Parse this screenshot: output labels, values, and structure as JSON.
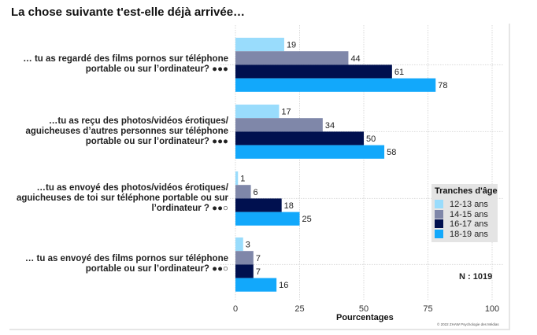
{
  "chart_data": {
    "type": "bar",
    "orientation": "horizontal",
    "title": "La chose suivante t'est-elle déjà arrivée…",
    "xlabel": "Pourcentages",
    "ylabel": "",
    "xlim": [
      0,
      100
    ],
    "xticks": [
      0,
      25,
      50,
      75,
      100
    ],
    "grid": true,
    "categories": [
      "… tu as regardé des films pornos sur téléphone\nportable ou sur l’ordinateur? ●●●",
      "…tu as reçu des photos/vidéos érotiques/\naguicheuses d’autres personnes sur téléphone\nportable ou sur l’ordinateur? ●●●",
      "…tu as envoyé des photos/vidéos érotiques/\naguicheuses de toi sur téléphone portable ou sur\nl’ordinateur ? ●●○",
      "… tu as envoyé des films pornos sur téléphone\nportable ou sur l’ordinateur? ●●○"
    ],
    "series": [
      {
        "name": "12-13 ans",
        "color": "#99dcfc",
        "values": [
          19,
          17,
          1,
          3
        ]
      },
      {
        "name": "14-15 ans",
        "color": "#7f87a9",
        "values": [
          44,
          34,
          6,
          7
        ]
      },
      {
        "name": "16-17 ans",
        "color": "#00104f",
        "values": [
          61,
          50,
          18,
          7
        ]
      },
      {
        "name": "18-19 ans",
        "color": "#12a8fb",
        "values": [
          78,
          58,
          25,
          16
        ]
      }
    ],
    "legend": {
      "title": "Tranches d'âge",
      "placement": "right"
    },
    "annotations": [
      "N : 1019",
      "© 2022 ZHAW Psychologie des Médias"
    ]
  },
  "page": {
    "title": "La chose suivante t'est-elle déjà arrivée…",
    "n_label": "N : 1019",
    "credit": "© 2022 ZHAW Psychologie des Médias"
  }
}
